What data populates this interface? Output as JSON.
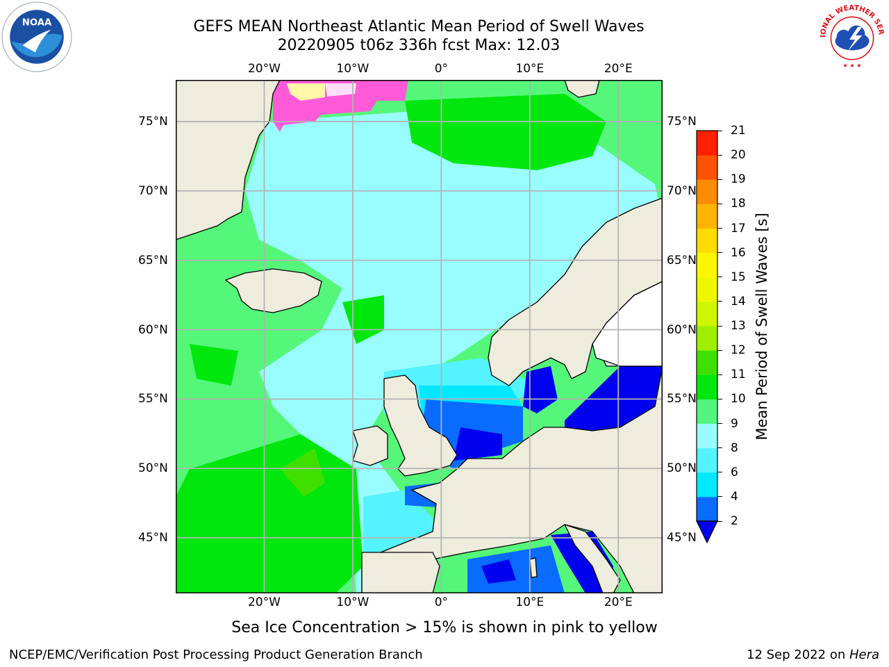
{
  "title": {
    "line1": "GEFS MEAN Northeast Atlantic Mean Period of Swell Waves",
    "line2": "20220905 t06z 336h fcst   Max: 12.03"
  },
  "logos": {
    "left": {
      "icon": "noaa-logo",
      "text": "NOAA"
    },
    "right": {
      "icon": "national-weather-service-logo",
      "text": "NATIONAL WEATHER SERVICE"
    }
  },
  "map": {
    "projection": "lat-lon",
    "lon_range": [
      -30,
      25
    ],
    "lat_range": [
      41,
      78
    ],
    "gridlines": true,
    "longitude_labels": [
      {
        "lon": -20,
        "text": "20°W"
      },
      {
        "lon": -10,
        "text": "10°W"
      },
      {
        "lon": 0,
        "text": "0°"
      },
      {
        "lon": 10,
        "text": "10°E"
      },
      {
        "lon": 20,
        "text": "20°E"
      }
    ],
    "latitude_labels": [
      {
        "lat": 75,
        "text": "75°N"
      },
      {
        "lat": 70,
        "text": "70°N"
      },
      {
        "lat": 65,
        "text": "65°N"
      },
      {
        "lat": 60,
        "text": "60°N"
      },
      {
        "lat": 55,
        "text": "55°N"
      },
      {
        "lat": 50,
        "text": "50°N"
      },
      {
        "lat": 45,
        "text": "45°N"
      }
    ],
    "land_color": "#eeecdc",
    "ocean_default_color": "#55f77a"
  },
  "colorbar": {
    "label": "Mean Period of Swell Waves [s]",
    "ticks": [
      "2",
      "4",
      "6",
      "8",
      "9",
      "10",
      "11",
      "12",
      "13",
      "14",
      "15",
      "16",
      "17",
      "18",
      "19",
      "20",
      "21"
    ],
    "colors": [
      "#0a6bff",
      "#00e8ff",
      "#55f2ff",
      "#99fdff",
      "#52f57f",
      "#00e70e",
      "#3fe000",
      "#9ef000",
      "#cdf600",
      "#edf800",
      "#fcf700",
      "#ffdd00",
      "#ffb500",
      "#ff8c00",
      "#ff5200",
      "#ff2000"
    ],
    "extend_color": "#0000ee"
  },
  "ice_note": "Sea Ice Concentration > 15% is shown in pink to yellow",
  "footer": {
    "credit": "NCEP/EMC/Verification Post Processing Product Generation Branch",
    "date": "12 Sep 2022 on ",
    "host": "Hera"
  }
}
